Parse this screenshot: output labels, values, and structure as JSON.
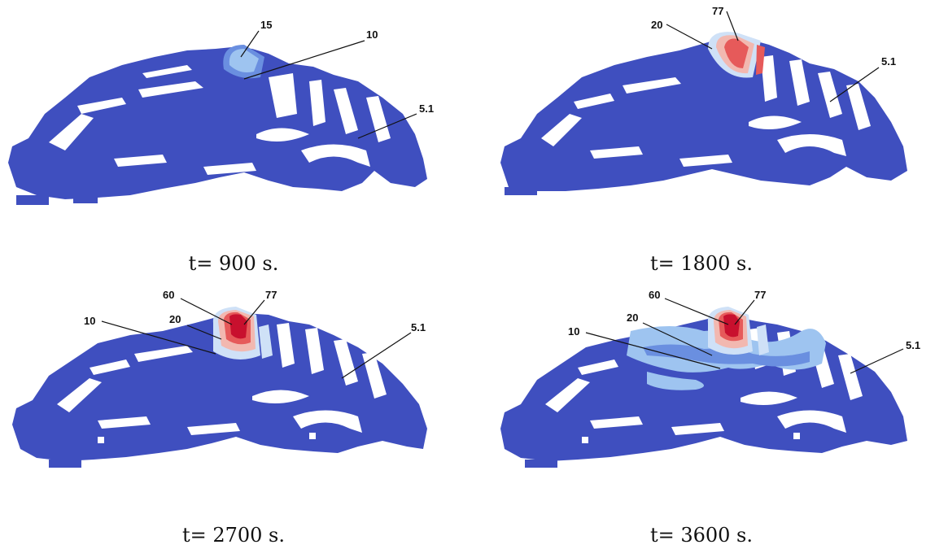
{
  "panels": [
    {
      "caption": "t= 900 s.",
      "labels": [
        "15",
        "10",
        "5.1"
      ]
    },
    {
      "caption": "t= 1800 s.",
      "labels": [
        "77",
        "20",
        "5.1"
      ]
    },
    {
      "caption": "t= 2700 s.",
      "labels": [
        "60",
        "77",
        "10",
        "20",
        "5.1"
      ]
    },
    {
      "caption": "t= 3600 s.",
      "labels": [
        "60",
        "77",
        "20",
        "10",
        "5.1"
      ]
    }
  ],
  "colors": {
    "tissue": "#3f4fbf",
    "level_10": "#6a8fe0",
    "level_15": "#9ec4f0",
    "level_20": "#cfe1f7",
    "level_60": "#e65a5a",
    "level_77": "#c8102e"
  }
}
